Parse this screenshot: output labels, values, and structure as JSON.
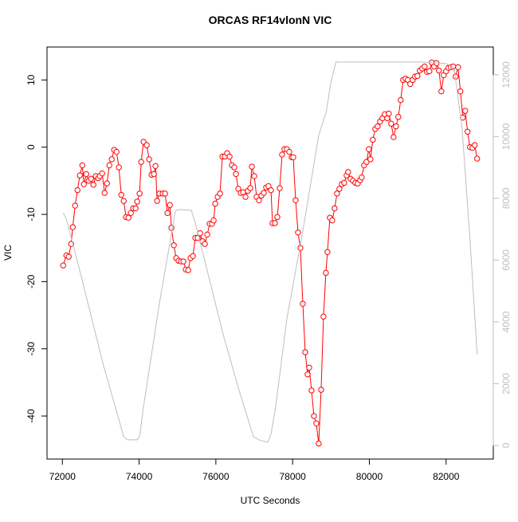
{
  "chart_data": {
    "type": "line",
    "title": "ORCAS RF14vlonN VIC",
    "xlabel": "UTC Seconds",
    "ylabel": "VIC",
    "xlim": [
      71600,
      83230
    ],
    "xticks": [
      72000,
      74000,
      76000,
      78000,
      80000,
      82000
    ],
    "ylim": [
      -46.4,
      14.9
    ],
    "yticks": [
      -40,
      -30,
      -20,
      -10,
      0,
      10
    ],
    "y2lim": [
      -440,
      12900
    ],
    "y2ticks": [
      0,
      2000,
      4000,
      6000,
      8000,
      10000,
      12000
    ],
    "series": [
      {
        "color": "#ff0000",
        "markers": true,
        "x": [
          72021,
          72104,
          72166,
          72228,
          72270,
          72332,
          72394,
          72456,
          72519,
          72560,
          72622,
          72685,
          72747,
          72809,
          72871,
          72934,
          72975,
          73037,
          73100,
          73162,
          73224,
          73286,
          73349,
          73411,
          73473,
          73535,
          73598,
          73660,
          73722,
          73784,
          73846,
          73909,
          73950,
          74012,
          74054,
          74116,
          74199,
          74261,
          74324,
          74386,
          74427,
          74469,
          74531,
          74614,
          74676,
          74739,
          74801,
          74842,
          74905,
          74967,
          75029,
          75091,
          75154,
          75216,
          75278,
          75340,
          75402,
          75465,
          75527,
          75589,
          75651,
          75714,
          75776,
          75838,
          75900,
          75942,
          75983,
          76046,
          76108,
          76170,
          76232,
          76295,
          76357,
          76419,
          76481,
          76523,
          76585,
          76647,
          76710,
          76772,
          76834,
          76896,
          76938,
          77000,
          77062,
          77124,
          77187,
          77249,
          77311,
          77373,
          77436,
          77477,
          77539,
          77602,
          77664,
          77726,
          77788,
          77851,
          77913,
          77975,
          78017,
          78079,
          78141,
          78203,
          78266,
          78328,
          78390,
          78432,
          78494,
          78556,
          78618,
          78680,
          78743,
          78805,
          78867,
          78909,
          78971,
          79033,
          79095,
          79158,
          79220,
          79282,
          79344,
          79407,
          79448,
          79510,
          79573,
          79635,
          79697,
          79759,
          79801,
          79863,
          79925,
          79987,
          80029,
          80091,
          80154,
          80216,
          80278,
          80340,
          80402,
          80465,
          80506,
          80568,
          80631,
          80693,
          80755,
          80817,
          80880,
          80942,
          81004,
          81066,
          81129,
          81191,
          81253,
          81315,
          81378,
          81440,
          81502,
          81564,
          81627,
          81689,
          81751,
          81813,
          81876,
          81938,
          82000,
          82062,
          82124,
          82187,
          82249,
          82311,
          82373,
          82436,
          82498,
          82560,
          82622,
          82685,
          82747,
          82809
        ],
        "values": [
          -17.6,
          -16.1,
          -16.3,
          -14.4,
          -11.9,
          -8.7,
          -6.4,
          -4.2,
          -2.7,
          -5.5,
          -4.0,
          -5.0,
          -4.7,
          -5.6,
          -4.3,
          -4.6,
          -4.3,
          -3.9,
          -6.8,
          -5.4,
          -2.7,
          -1.8,
          -0.4,
          -0.7,
          -3.0,
          -7.1,
          -8.0,
          -10.4,
          -10.5,
          -9.8,
          -9.1,
          -9.1,
          -8.1,
          -6.9,
          -2.2,
          0.8,
          0.3,
          -1.8,
          -4.1,
          -4.0,
          -2.8,
          -8.0,
          -6.9,
          -6.9,
          -6.9,
          -9.8,
          -8.6,
          -12.0,
          -14.6,
          -16.5,
          -16.9,
          -17.0,
          -17.0,
          -18.2,
          -18.3,
          -16.5,
          -16.2,
          -13.5,
          -13.5,
          -12.8,
          -14.0,
          -14.4,
          -13.0,
          -11.4,
          -11.4,
          -10.9,
          -8.4,
          -7.4,
          -6.9,
          -1.4,
          -1.4,
          -0.9,
          -1.4,
          -2.7,
          -3.0,
          -4.0,
          -6.2,
          -6.8,
          -6.7,
          -7.4,
          -6.5,
          -6.1,
          -2.9,
          -4.3,
          -7.4,
          -7.9,
          -7.2,
          -6.8,
          -6.0,
          -5.8,
          -6.4,
          -11.3,
          -11.3,
          -10.4,
          -6.1,
          -1.1,
          -0.3,
          -0.3,
          -0.7,
          -1.5,
          -1.5,
          -7.9,
          -12.7,
          -15.0,
          -23.3,
          -30.5,
          -33.8,
          -32.8,
          -36.2,
          -40.0,
          -41.1,
          -44.1,
          -36.1,
          -25.2,
          -18.7,
          -15.6,
          -10.5,
          -10.9,
          -9.1,
          -6.9,
          -6.2,
          -5.5,
          -5.3,
          -4.2,
          -3.7,
          -4.7,
          -5.0,
          -5.3,
          -5.4,
          -4.9,
          -4.5,
          -2.7,
          -2.2,
          -0.3,
          -1.8,
          1.1,
          2.7,
          3.1,
          3.8,
          4.3,
          4.9,
          4.3,
          5.0,
          3.5,
          1.5,
          3.1,
          4.5,
          7.0,
          10.0,
          10.2,
          10.0,
          9.4,
          10.0,
          10.5,
          10.6,
          11.4,
          11.7,
          12.0,
          11.2,
          11.3,
          12.6,
          12.0,
          12.5,
          11.4,
          8.3,
          10.7,
          11.3,
          11.8,
          11.9,
          12.0,
          10.5,
          11.9,
          8.3,
          4.4,
          5.4,
          2.3,
          0.0,
          -0.1,
          0.3,
          -1.7
        ]
      },
      {
        "color": "#bebebe",
        "axis": "y2",
        "markers": false,
        "x": [
          72021,
          72104,
          72456,
          73079,
          73494,
          73598,
          73701,
          73950,
          74012,
          74116,
          74531,
          74946,
          75029,
          75361,
          75465,
          75776,
          76191,
          76606,
          76979,
          77124,
          77353,
          77436,
          77560,
          77851,
          78266,
          78680,
          78880,
          78990,
          79129,
          79925,
          80755,
          81378,
          82000,
          82207,
          82415,
          82622,
          82809
        ],
        "values": [
          7535,
          7329,
          5652,
          2555,
          748,
          284,
          181,
          181,
          284,
          1265,
          4619,
          7587,
          7639,
          7613,
          7200,
          5652,
          3587,
          1781,
          284,
          181,
          103,
          361,
          1265,
          4103,
          6942,
          10039,
          10813,
          11716,
          12413,
          12413,
          12413,
          12413,
          12361,
          12232,
          10297,
          6684,
          2942
        ]
      }
    ]
  }
}
